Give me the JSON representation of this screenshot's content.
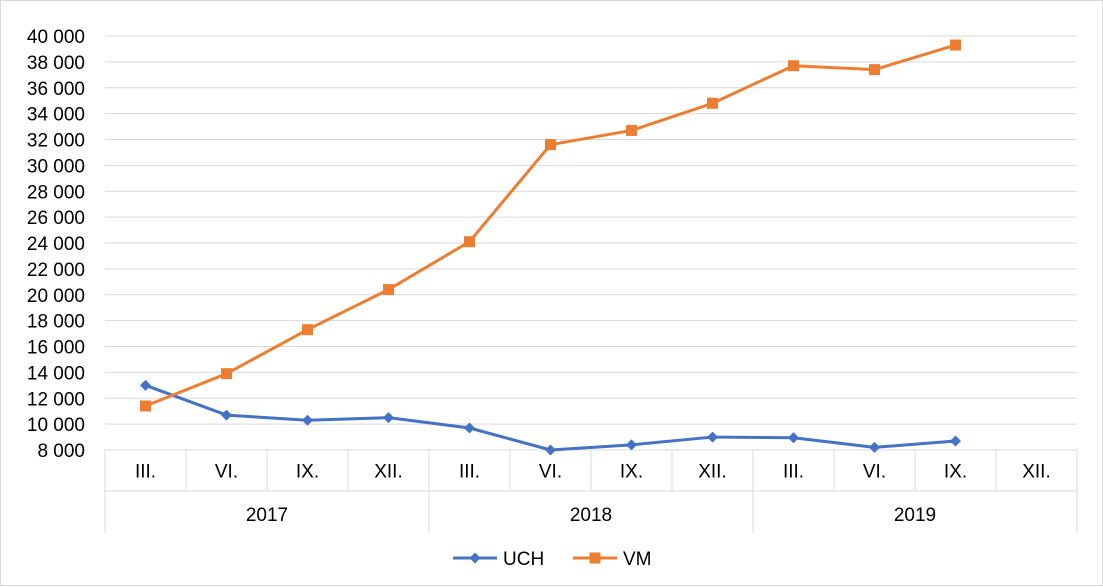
{
  "chart_data": {
    "type": "line",
    "title": "",
    "xlabel": "",
    "ylabel": "",
    "ylim": [
      8000,
      40000
    ],
    "y_ticks": [
      "8 000",
      "10 000",
      "12 000",
      "14 000",
      "16 000",
      "18 000",
      "20 000",
      "22 000",
      "24 000",
      "26 000",
      "28 000",
      "30 000",
      "32 000",
      "34 000",
      "36 000",
      "38 000",
      "40 000"
    ],
    "y_tick_values": [
      8000,
      10000,
      12000,
      14000,
      16000,
      18000,
      20000,
      22000,
      24000,
      26000,
      28000,
      30000,
      32000,
      34000,
      36000,
      38000,
      40000
    ],
    "grid": true,
    "legend_position": "bottom",
    "categories": [
      "III.",
      "VI.",
      "IX.",
      "XII.",
      "III.",
      "VI.",
      "IX.",
      "XII.",
      "III.",
      "VI.",
      "IX.",
      "XII."
    ],
    "groups": [
      {
        "label": "2017",
        "span": 4
      },
      {
        "label": "2018",
        "span": 4
      },
      {
        "label": "2019",
        "span": 4
      }
    ],
    "series": [
      {
        "name": "UCH",
        "color": "#4472c4",
        "marker": "diamond",
        "values": [
          13000,
          10700,
          10300,
          10500,
          9700,
          8000,
          8400,
          9000,
          8950,
          8200,
          8700,
          null
        ]
      },
      {
        "name": "VM",
        "color": "#ed7d31",
        "marker": "square",
        "values": [
          11400,
          13900,
          17300,
          20400,
          24100,
          31600,
          32700,
          34800,
          37700,
          37400,
          39300,
          null
        ]
      }
    ]
  }
}
